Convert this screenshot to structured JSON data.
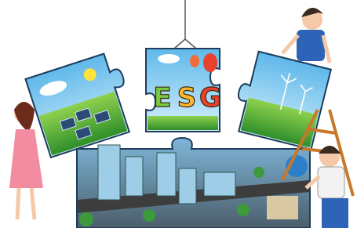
{
  "esg_piece": {
    "letters": [
      "E",
      "S",
      "G"
    ]
  }
}
